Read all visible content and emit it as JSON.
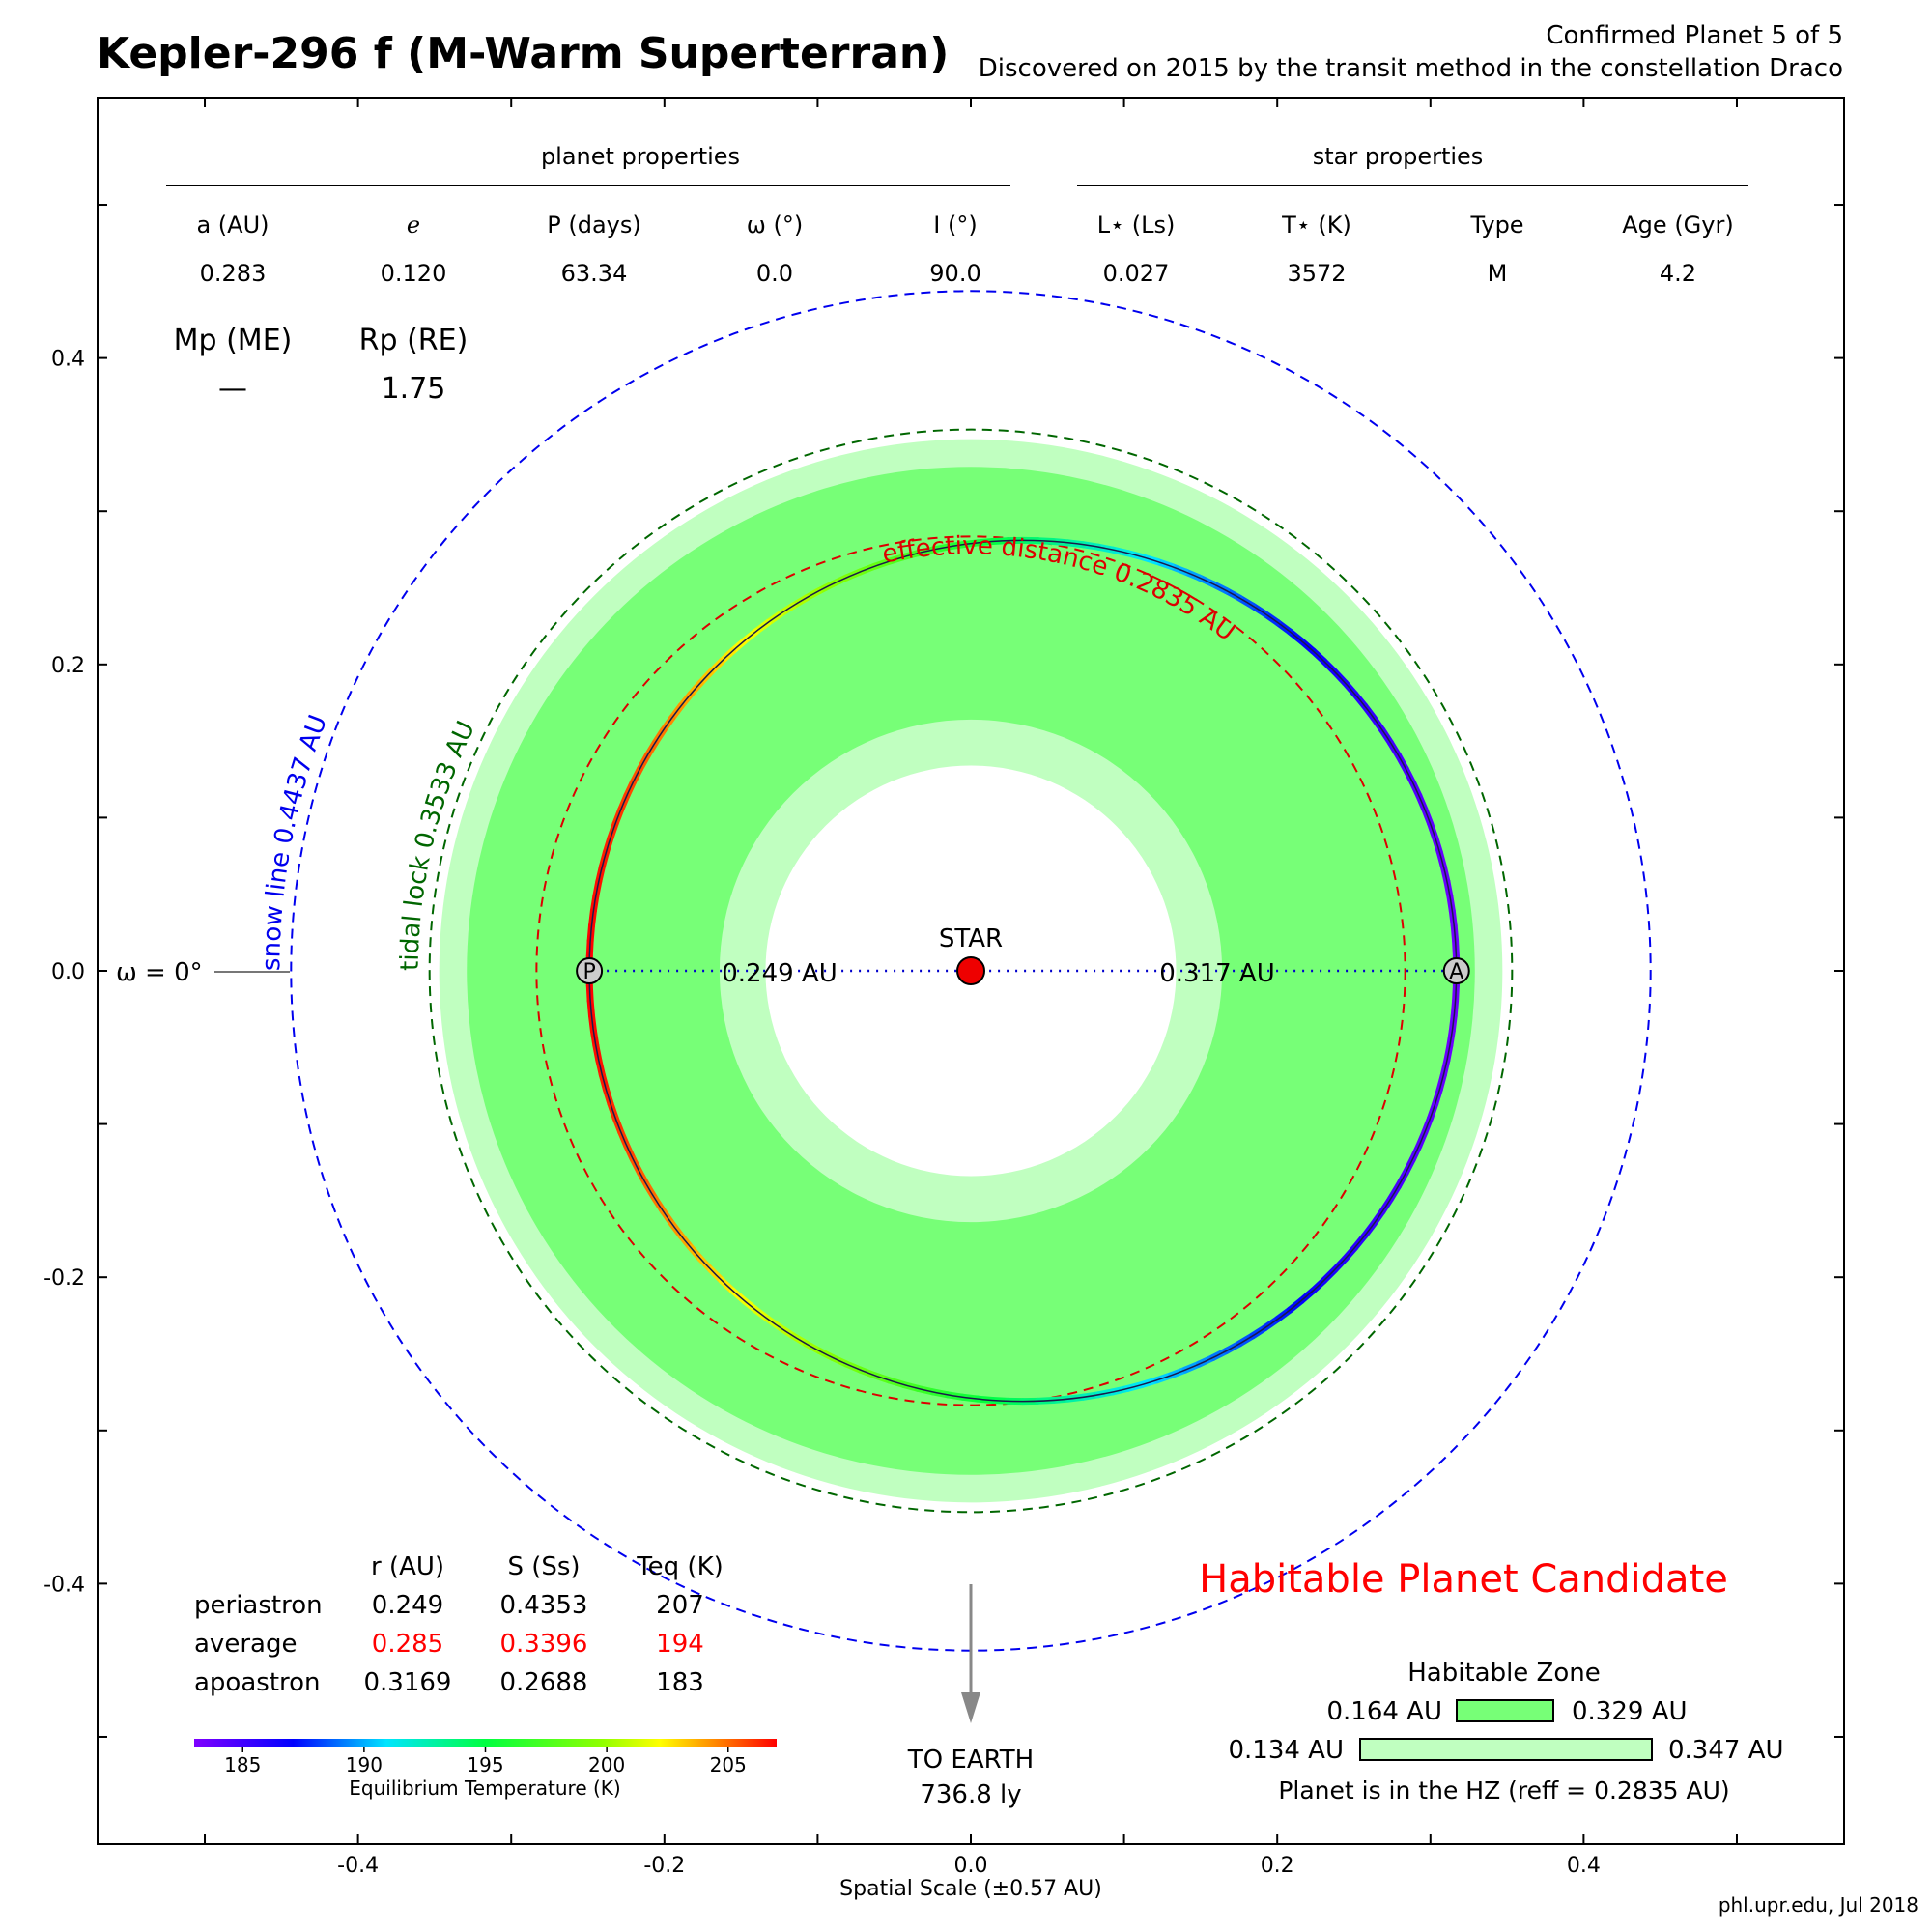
{
  "header": {
    "title": "Kepler-296 f (M-Warm Superterran)",
    "confirmed": "Confirmed Planet 5 of 5",
    "discovery": "Discovered on 2015 by the transit method in the constellation Draco",
    "credit": "phl.upr.edu, Jul 2018"
  },
  "planet_properties": {
    "heading": "planet properties",
    "columns": [
      {
        "label": "a (AU)",
        "value": "0.283"
      },
      {
        "label": "e",
        "value": "0.120"
      },
      {
        "label": "P (days)",
        "value": "63.34"
      },
      {
        "label": "ω (°)",
        "value": "0.0"
      },
      {
        "label": "I (°)",
        "value": "90.0"
      }
    ],
    "mass_label": "Mp (ME)",
    "mass_value": "—",
    "radius_label": "Rp (RE)",
    "radius_value": "1.75"
  },
  "star_properties": {
    "heading": "star properties",
    "columns": [
      {
        "label": "L⋆ (Ls)",
        "value": "0.027"
      },
      {
        "label": "T⋆ (K)",
        "value": "3572"
      },
      {
        "label": "Type",
        "value": "M"
      },
      {
        "label": "Age (Gyr)",
        "value": "4.2"
      }
    ]
  },
  "orbit_table": {
    "headers": [
      "r (AU)",
      "S (Ss)",
      "Teq (K)"
    ],
    "rows": [
      {
        "name": "periastron",
        "values": [
          "0.249",
          "0.4353",
          "207"
        ],
        "highlight": false
      },
      {
        "name": "average",
        "values": [
          "0.285",
          "0.3396",
          "194"
        ],
        "highlight": true
      },
      {
        "name": "apoastron",
        "values": [
          "0.3169",
          "0.2688",
          "183"
        ],
        "highlight": false
      }
    ]
  },
  "colorbar": {
    "label": "Equilibrium Temperature (K)",
    "ticks": [
      "185",
      "190",
      "195",
      "200",
      "205"
    ],
    "min": 183,
    "max": 207
  },
  "habitable_zone": {
    "heading": "Habitable Zone",
    "conservative": [
      "0.164 AU",
      "0.329 AU"
    ],
    "optimistic": [
      "0.134 AU",
      "0.347 AU"
    ],
    "status": "Planet is in the HZ (reff = 0.2835 AU)",
    "candidate": "Habitable Planet Candidate",
    "color_conservative": "#77ff77",
    "color_optimistic": "#c0ffc0"
  },
  "labels": {
    "star": "STAR",
    "periastron_marker": "P",
    "apoastron_marker": "A",
    "periastron_distance": "0.249 AU",
    "apoastron_distance": "0.317 AU",
    "omega": "ω = 0°",
    "snow_line": "snow line 0.4437 AU",
    "tidal_lock": "tidal lock 0.3533 AU",
    "effective_distance": "effective distance 0.2835 AU",
    "to_earth": "TO EARTH",
    "earth_distance": "736.8 ly",
    "xlabel": "Spatial Scale (±0.57 AU)"
  },
  "chart_data": {
    "type": "scatter",
    "title": "Kepler-296 f (M-Warm Superterran)",
    "xlabel": "Spatial Scale (±0.57 AU)",
    "ylabel": "",
    "xlim": [
      -0.57,
      0.57
    ],
    "ylim": [
      -0.57,
      0.57
    ],
    "xticks": [
      -0.4,
      -0.2,
      0.0,
      0.2,
      0.4
    ],
    "yticks": [
      0.4,
      0.2,
      0.0,
      -0.2,
      -0.4
    ],
    "xtick_labels": [
      "-0.4",
      "-0.2",
      "0.0",
      "0.2",
      "0.4"
    ],
    "ytick_labels": [
      "0.4",
      "0.2",
      "0.0",
      "-0.2",
      "-0.4"
    ],
    "orbit": {
      "a": 0.283,
      "e": 0.12,
      "periastron_x": -0.249,
      "apoastron_x": 0.317
    },
    "circles": [
      {
        "name": "snow line",
        "r": 0.4437,
        "color": "#0000ee"
      },
      {
        "name": "tidal lock",
        "r": 0.3533,
        "color": "#006600"
      },
      {
        "name": "effective distance",
        "r": 0.2835,
        "color": "#dd0000"
      }
    ],
    "hz_conservative": [
      0.164,
      0.329
    ],
    "hz_optimistic": [
      0.134,
      0.347
    ],
    "grid": false
  }
}
